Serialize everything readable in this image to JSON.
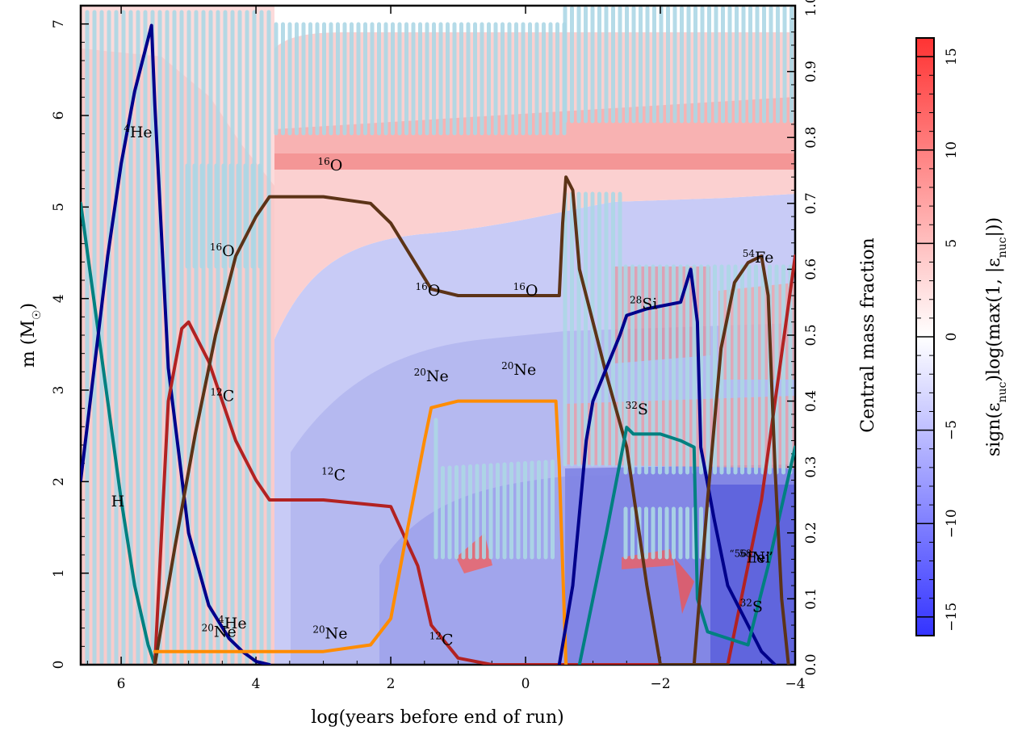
{
  "chart_data": {
    "type": "line",
    "xlabel": "log(years before end of run)",
    "ylabel_left": "m (M☉)",
    "ylabel_right": "Central mass fraction",
    "colorbar_label": "sign(εnuc)log(max(1, |εnuc|))",
    "x_reversed": true,
    "xlim": [
      6.6,
      -4.0
    ],
    "ylim_left": [
      0,
      7.2
    ],
    "ylim_right": [
      0,
      1.0
    ],
    "colorbar_range": [
      -16,
      16
    ],
    "x_ticks": [
      6,
      4,
      2,
      0,
      -2,
      -4
    ],
    "y_left_ticks": [
      0,
      1,
      2,
      3,
      4,
      5,
      6,
      7
    ],
    "y_right_ticks": [
      0.0,
      0.1,
      0.2,
      0.3,
      0.4,
      0.5,
      0.6,
      0.7,
      0.8,
      0.9,
      1.0
    ],
    "colorbar_ticks": [
      -15,
      -10,
      -5,
      0,
      5,
      10,
      15
    ],
    "grid": false,
    "colors": {
      "h1": "#008080",
      "he4": "#00008b",
      "c12": "#b22222",
      "o16": "#5c3317",
      "ne20": "#ff8c00",
      "si28": "#00008b",
      "s32": "#008080",
      "fe54": "#5c3317",
      "heating": "#ff4040",
      "cooling": "#3030ff",
      "convection": "#add8e6"
    },
    "series": [
      {
        "name": "H",
        "key": "h1",
        "x": [
          6.6,
          6.4,
          6.2,
          6.0,
          5.8,
          5.6,
          5.5
        ],
        "y": [
          0.7,
          0.55,
          0.4,
          0.25,
          0.12,
          0.03,
          0.0
        ]
      },
      {
        "name": "4He",
        "key": "he4",
        "x": [
          6.6,
          6.4,
          6.2,
          6.0,
          5.8,
          5.55,
          5.5,
          5.3,
          5.0,
          4.7,
          4.4,
          4.2,
          4.0,
          3.8
        ],
        "y": [
          0.28,
          0.45,
          0.62,
          0.76,
          0.87,
          0.97,
          0.85,
          0.45,
          0.2,
          0.09,
          0.04,
          0.02,
          0.005,
          0.0
        ]
      },
      {
        "name": "12C",
        "key": "c12",
        "x": [
          5.5,
          5.3,
          5.1,
          5.0,
          4.7,
          4.3,
          4.0,
          3.8,
          3.0,
          2.0,
          1.6,
          1.4,
          1.0,
          0.5,
          0.0,
          -1.0,
          -3.0,
          -3.5,
          -4.0
        ],
        "y": [
          0.0,
          0.4,
          0.51,
          0.52,
          0.46,
          0.34,
          0.28,
          0.25,
          0.25,
          0.24,
          0.15,
          0.06,
          0.01,
          0.0,
          0.0,
          0.0,
          0.0,
          0.25,
          0.62
        ]
      },
      {
        "name": "16O",
        "key": "o16",
        "x": [
          5.5,
          5.2,
          4.9,
          4.6,
          4.3,
          4.0,
          3.8,
          3.0,
          2.3,
          2.0,
          1.7,
          1.4,
          1.0,
          0.5,
          -0.5,
          -0.55,
          -0.6,
          -0.7,
          -0.8,
          -1.2,
          -1.5,
          -1.8,
          -2.0,
          -2.3,
          -3.0
        ],
        "y": [
          0.0,
          0.18,
          0.35,
          0.5,
          0.62,
          0.68,
          0.71,
          0.71,
          0.7,
          0.67,
          0.62,
          0.57,
          0.56,
          0.56,
          0.56,
          0.67,
          0.74,
          0.72,
          0.6,
          0.44,
          0.33,
          0.12,
          0.0,
          0.0,
          0.0
        ]
      },
      {
        "name": "20Ne",
        "key": "ne20",
        "x": [
          5.5,
          4.5,
          3.0,
          2.3,
          2.0,
          1.8,
          1.5,
          1.4,
          1.0,
          0.5,
          0.0,
          -0.45,
          -0.5,
          -0.6
        ],
        "y": [
          0.02,
          0.02,
          0.02,
          0.03,
          0.07,
          0.18,
          0.34,
          0.39,
          0.4,
          0.4,
          0.4,
          0.4,
          0.3,
          0.0
        ]
      },
      {
        "name": "28Si",
        "key": "si28",
        "x": [
          -0.5,
          -0.7,
          -0.9,
          -1.0,
          -1.2,
          -1.4,
          -1.5,
          -1.8,
          -2.3,
          -2.45,
          -2.55,
          -2.6,
          -2.8,
          -3.0,
          -3.3,
          -3.5,
          -3.7
        ],
        "y": [
          0.0,
          0.12,
          0.34,
          0.4,
          0.45,
          0.5,
          0.53,
          0.54,
          0.55,
          0.6,
          0.52,
          0.33,
          0.22,
          0.12,
          0.06,
          0.02,
          0.0
        ]
      },
      {
        "name": "32S",
        "key": "s32",
        "x": [
          -0.8,
          -1.2,
          -1.5,
          -1.6,
          -2.0,
          -2.3,
          -2.5,
          -2.55,
          -2.7,
          -3.0,
          -3.3,
          -3.6,
          -4.0
        ],
        "y": [
          0.0,
          0.2,
          0.36,
          0.35,
          0.35,
          0.34,
          0.33,
          0.1,
          0.05,
          0.04,
          0.03,
          0.15,
          0.33
        ]
      },
      {
        "name": "54Fe",
        "key": "fe54",
        "x": [
          -2.5,
          -2.7,
          -2.9,
          -3.1,
          -3.3,
          -3.5,
          -3.6,
          -3.7,
          -3.8,
          -3.9
        ],
        "y": [
          0.0,
          0.25,
          0.48,
          0.58,
          0.61,
          0.62,
          0.56,
          0.3,
          0.1,
          0.0
        ]
      }
    ],
    "annotations": [
      {
        "iso": "4",
        "el": "He",
        "x": 5.75,
        "y": 0.8
      },
      {
        "iso": "16",
        "el": "O",
        "x": 4.5,
        "y": 0.62
      },
      {
        "iso": "12",
        "el": "C",
        "x": 4.5,
        "y": 0.4
      },
      {
        "iso": "16",
        "el": "O",
        "x": 2.9,
        "y": 0.75
      },
      {
        "iso": "12",
        "el": "C",
        "x": 2.85,
        "y": 0.28
      },
      {
        "iso": "16",
        "el": "O",
        "x": 1.45,
        "y": 0.56
      },
      {
        "iso": "16",
        "el": "O",
        "x": 0.0,
        "y": 0.56
      },
      {
        "iso": "20",
        "el": "Ne",
        "x": 1.4,
        "y": 0.43
      },
      {
        "iso": "20",
        "el": "Ne",
        "x": 0.1,
        "y": 0.44
      },
      {
        "iso": "20",
        "el": "Ne",
        "x": 2.9,
        "y": 0.04
      },
      {
        "iso": "12",
        "el": "C",
        "x": 1.25,
        "y": 0.03
      },
      {
        "iso": "",
        "el": "H",
        "x": 6.05,
        "y": 0.24
      },
      {
        "iso": "4",
        "el": "He",
        "x": 4.35,
        "y": 0.055
      },
      {
        "iso": "20",
        "el": "Ne",
        "x": 4.55,
        "y": 0.042
      },
      {
        "iso": "28",
        "el": "Si",
        "x": -1.75,
        "y": 0.54
      },
      {
        "iso": "32",
        "el": "S",
        "x": -1.65,
        "y": 0.38
      },
      {
        "iso": "54",
        "el": "Fe",
        "x": -3.45,
        "y": 0.61
      },
      {
        "iso": "32",
        "el": "S",
        "x": -3.35,
        "y": 0.08
      },
      {
        "iso": "“56",
        "el": "Fe”",
        "x": -3.35,
        "y": 0.155
      },
      {
        "iso": "58",
        "el": "Ni",
        "x": -3.4,
        "y": 0.155
      }
    ]
  }
}
